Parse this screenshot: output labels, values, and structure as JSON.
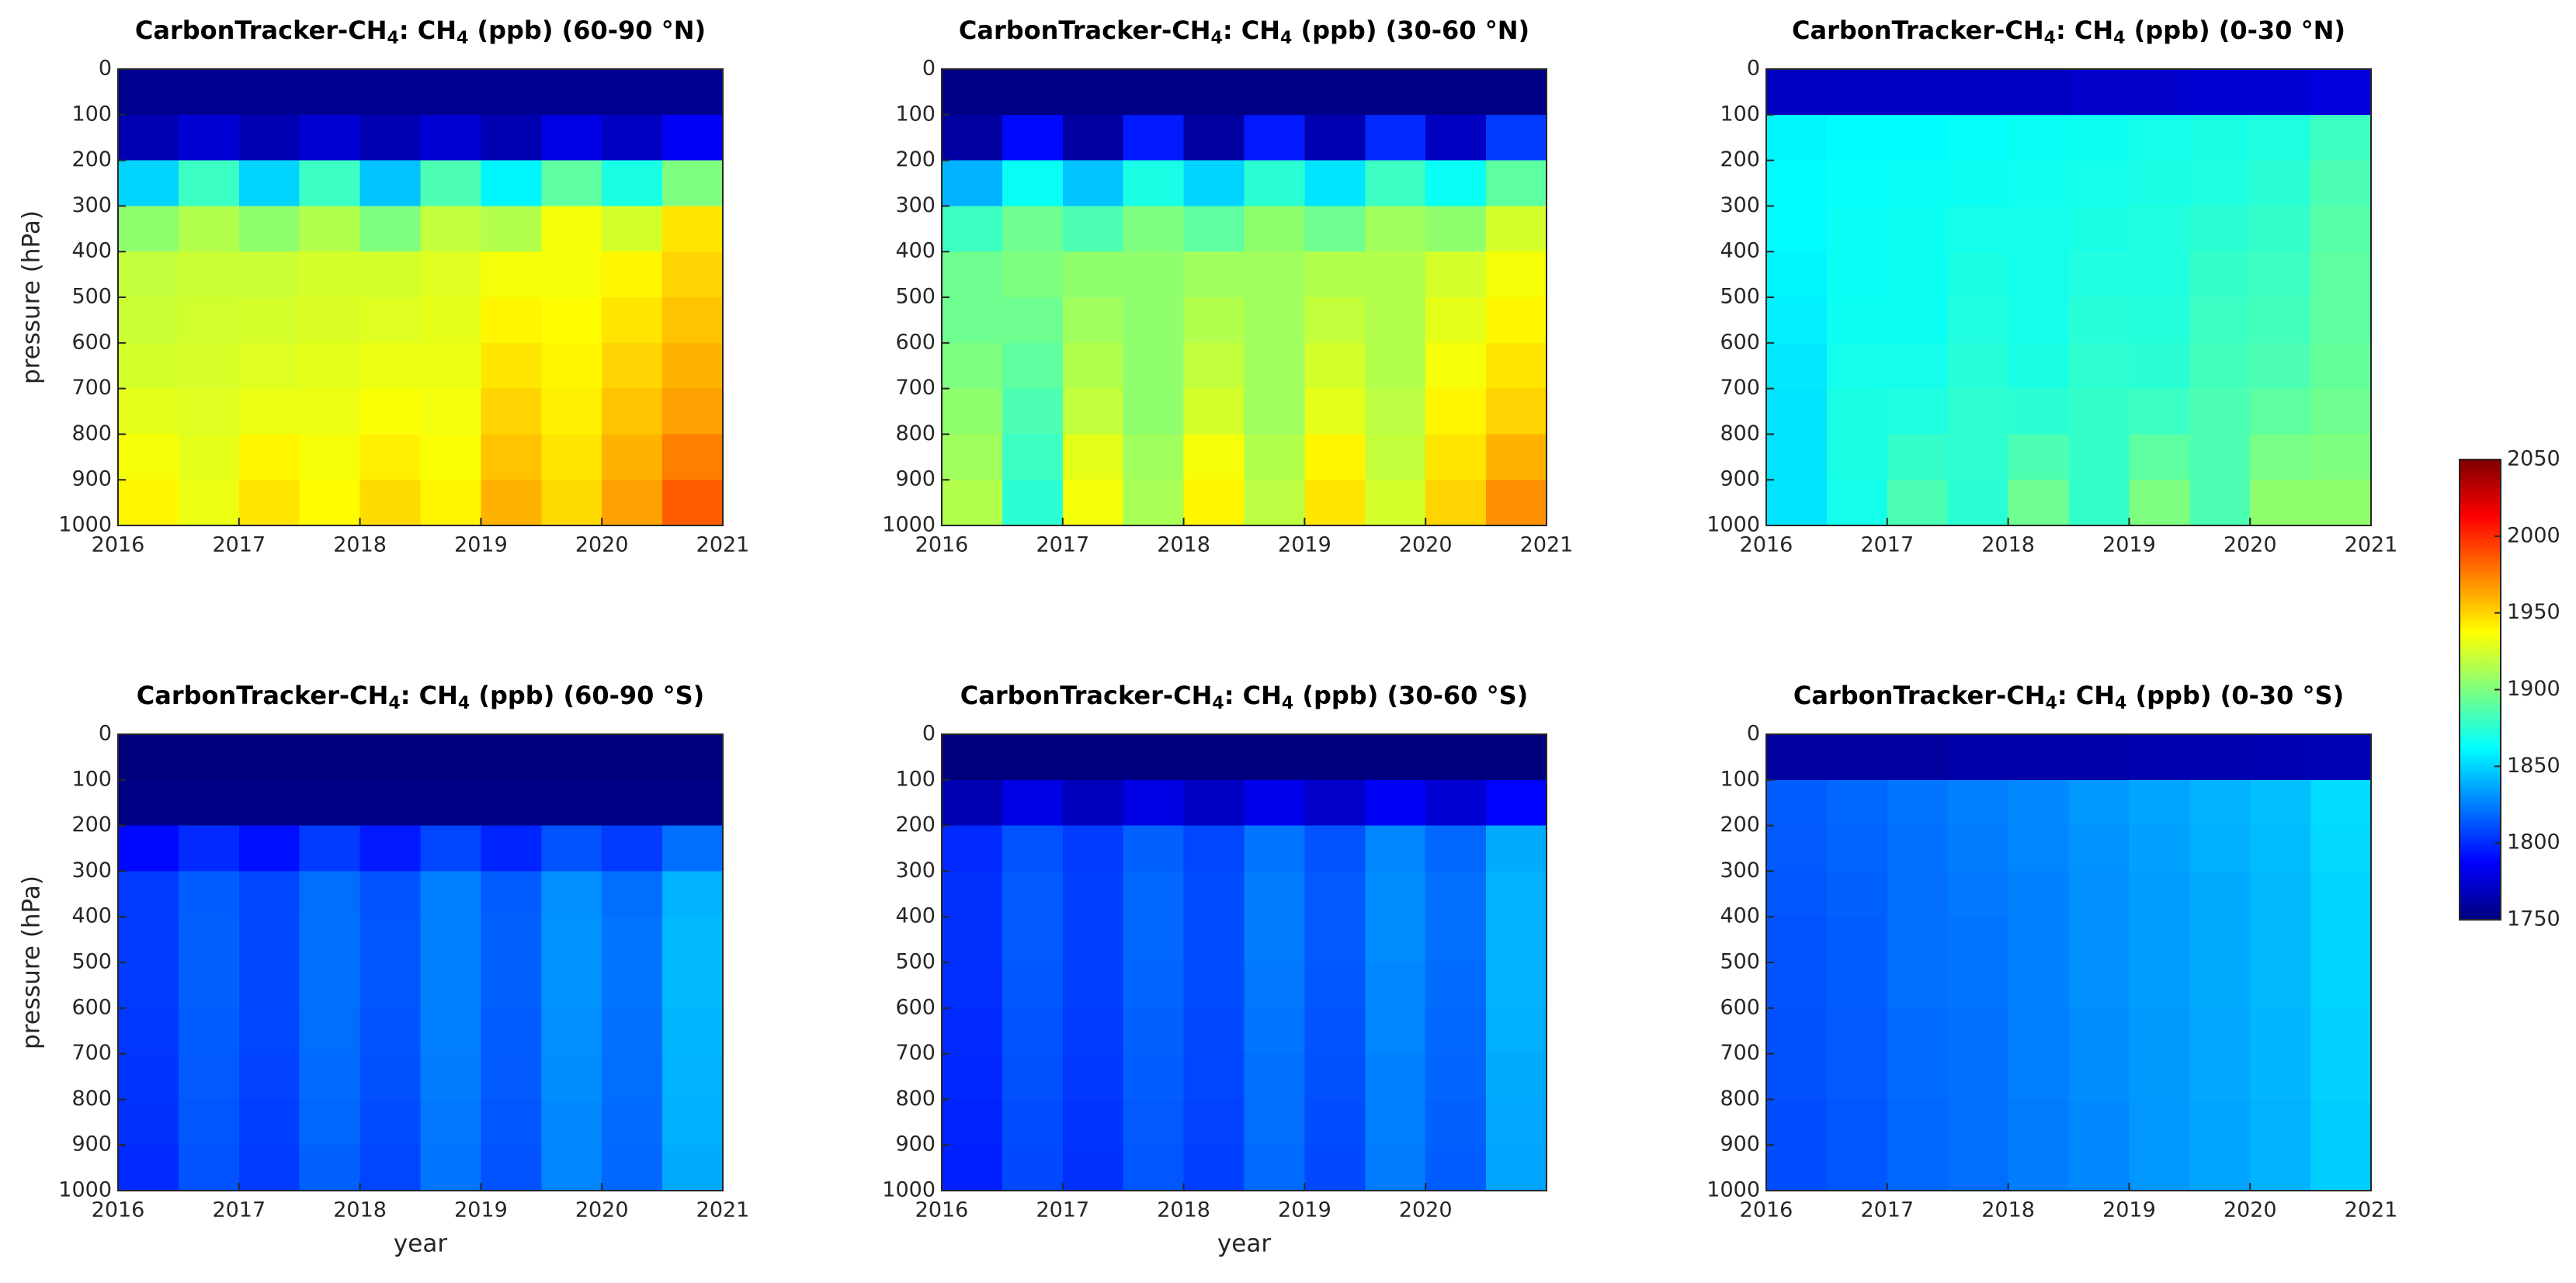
{
  "colorbar": {
    "zlim": [
      1750,
      2050
    ],
    "zticks": [
      1750,
      1800,
      1850,
      1900,
      1950,
      2000,
      2050
    ],
    "colorscale": [
      "#00007f",
      "#0000ff",
      "#007fff",
      "#00ffff",
      "#7fff7f",
      "#ffff00",
      "#ff7f00",
      "#ff0000",
      "#7f0000"
    ]
  },
  "chart_data": [
    {
      "type": "heatmap",
      "title": "CarbonTracker-CH4: CH4 (ppb) (60-90 °N)",
      "ylabel": "pressure (hPa)",
      "xlim": [
        2016,
        2021
      ],
      "xticks": [
        2016,
        2017,
        2018,
        2019,
        2020,
        2021
      ],
      "ylim": [
        0,
        1000
      ],
      "yreverse": true,
      "yticks": [
        0,
        100,
        200,
        300,
        400,
        500,
        600,
        700,
        800,
        900,
        1000
      ],
      "x": [
        2016.25,
        2016.75,
        2017.25,
        2017.75,
        2018.25,
        2018.75,
        2019.25,
        2019.75,
        2020.25,
        2020.75
      ],
      "y": [
        50,
        150,
        250,
        350,
        450,
        550,
        650,
        750,
        850,
        950
      ],
      "z": [
        [
          1755,
          1755,
          1755,
          1755,
          1755,
          1755,
          1755,
          1755,
          1755,
          1755
        ],
        [
          1765,
          1775,
          1765,
          1775,
          1765,
          1775,
          1765,
          1780,
          1770,
          1785
        ],
        [
          1850,
          1880,
          1850,
          1880,
          1845,
          1885,
          1860,
          1890,
          1870,
          1900
        ],
        [
          1905,
          1915,
          1905,
          1915,
          1900,
          1920,
          1915,
          1935,
          1925,
          1945
        ],
        [
          1920,
          1922,
          1922,
          1925,
          1925,
          1928,
          1935,
          1935,
          1940,
          1950
        ],
        [
          1922,
          1924,
          1925,
          1927,
          1928,
          1930,
          1940,
          1938,
          1945,
          1955
        ],
        [
          1925,
          1926,
          1928,
          1930,
          1932,
          1932,
          1945,
          1940,
          1950,
          1960
        ],
        [
          1930,
          1928,
          1932,
          1932,
          1936,
          1934,
          1950,
          1942,
          1955,
          1965
        ],
        [
          1935,
          1930,
          1940,
          1935,
          1942,
          1936,
          1955,
          1945,
          1960,
          1975
        ],
        [
          1940,
          1932,
          1945,
          1938,
          1948,
          1940,
          1960,
          1948,
          1965,
          1985
        ]
      ]
    },
    {
      "type": "heatmap",
      "title": "CarbonTracker-CH4: CH4 (ppb) (30-60 °N)",
      "xlim": [
        2016,
        2021
      ],
      "xticks": [
        2016,
        2017,
        2018,
        2019,
        2020,
        2021
      ],
      "ylim": [
        0,
        1000
      ],
      "yreverse": true,
      "yticks": [
        0,
        100,
        200,
        300,
        400,
        500,
        600,
        700,
        800,
        900,
        1000
      ],
      "x": [
        2016.25,
        2016.75,
        2017.25,
        2017.75,
        2018.25,
        2018.75,
        2019.25,
        2019.75,
        2020.25,
        2020.75
      ],
      "y": [
        50,
        150,
        250,
        350,
        450,
        550,
        650,
        750,
        850,
        950
      ],
      "z": [
        [
          1752,
          1752,
          1752,
          1752,
          1752,
          1752,
          1752,
          1752,
          1752,
          1752
        ],
        [
          1760,
          1790,
          1760,
          1795,
          1760,
          1795,
          1765,
          1800,
          1770,
          1805
        ],
        [
          1840,
          1865,
          1845,
          1870,
          1850,
          1875,
          1855,
          1880,
          1865,
          1890
        ],
        [
          1880,
          1895,
          1885,
          1900,
          1890,
          1905,
          1895,
          1910,
          1905,
          1925
        ],
        [
          1895,
          1900,
          1905,
          1905,
          1910,
          1910,
          1915,
          1915,
          1925,
          1935
        ],
        [
          1895,
          1895,
          1910,
          1905,
          1915,
          1910,
          1920,
          1915,
          1930,
          1940
        ],
        [
          1900,
          1890,
          1915,
          1905,
          1920,
          1910,
          1925,
          1915,
          1935,
          1945
        ],
        [
          1905,
          1885,
          1920,
          1905,
          1925,
          1910,
          1930,
          1918,
          1940,
          1950
        ],
        [
          1910,
          1880,
          1930,
          1910,
          1935,
          1915,
          1940,
          1920,
          1945,
          1960
        ],
        [
          1915,
          1875,
          1935,
          1912,
          1940,
          1918,
          1945,
          1925,
          1950,
          1970
        ]
      ]
    },
    {
      "type": "heatmap",
      "title": "CarbonTracker-CH4: CH4 (ppb) (0-30 °N)",
      "xlim": [
        2016,
        2021
      ],
      "xticks": [
        2016,
        2017,
        2018,
        2019,
        2020,
        2021
      ],
      "ylim": [
        0,
        1000
      ],
      "yreverse": true,
      "yticks": [
        0,
        100,
        200,
        300,
        400,
        500,
        600,
        700,
        800,
        900,
        1000
      ],
      "x": [
        2016.25,
        2016.75,
        2017.25,
        2017.75,
        2018.25,
        2018.75,
        2019.25,
        2019.75,
        2020.25,
        2020.75
      ],
      "y": [
        50,
        150,
        250,
        350,
        450,
        550,
        650,
        750,
        850,
        950
      ],
      "z": [
        [
          1770,
          1770,
          1770,
          1770,
          1770,
          1772,
          1772,
          1775,
          1775,
          1778
        ],
        [
          1860,
          1862,
          1862,
          1864,
          1865,
          1866,
          1868,
          1870,
          1872,
          1880
        ],
        [
          1862,
          1864,
          1865,
          1866,
          1867,
          1868,
          1870,
          1872,
          1875,
          1885
        ],
        [
          1862,
          1865,
          1866,
          1868,
          1868,
          1870,
          1872,
          1875,
          1878,
          1888
        ],
        [
          1860,
          1865,
          1866,
          1870,
          1868,
          1872,
          1872,
          1878,
          1880,
          1890
        ],
        [
          1858,
          1866,
          1866,
          1872,
          1868,
          1874,
          1873,
          1880,
          1882,
          1890
        ],
        [
          1856,
          1868,
          1868,
          1874,
          1870,
          1876,
          1875,
          1882,
          1885,
          1892
        ],
        [
          1855,
          1870,
          1872,
          1876,
          1875,
          1878,
          1880,
          1885,
          1890,
          1895
        ],
        [
          1855,
          1870,
          1878,
          1876,
          1885,
          1878,
          1890,
          1885,
          1898,
          1900
        ],
        [
          1855,
          1868,
          1885,
          1875,
          1895,
          1878,
          1900,
          1885,
          1905,
          1905
        ]
      ]
    },
    {
      "type": "heatmap",
      "title": "CarbonTracker-CH4: CH4 (ppb) (60-90 °S)",
      "ylabel": "pressure (hPa)",
      "xlabel": "year",
      "xlim": [
        2016,
        2021
      ],
      "xticks": [
        2016,
        2017,
        2018,
        2019,
        2020,
        2021
      ],
      "ylim": [
        0,
        1000
      ],
      "yreverse": true,
      "yticks": [
        0,
        100,
        200,
        300,
        400,
        500,
        600,
        700,
        800,
        900,
        1000
      ],
      "x": [
        2016.25,
        2016.75,
        2017.25,
        2017.75,
        2018.25,
        2018.75,
        2019.25,
        2019.75,
        2020.25,
        2020.75
      ],
      "y": [
        50,
        150,
        250,
        350,
        450,
        550,
        650,
        750,
        850,
        950
      ],
      "z": [
        [
          1750,
          1750,
          1750,
          1750,
          1750,
          1750,
          1750,
          1750,
          1750,
          1750
        ],
        [
          1752,
          1752,
          1752,
          1752,
          1752,
          1752,
          1752,
          1752,
          1752,
          1752
        ],
        [
          1790,
          1800,
          1792,
          1805,
          1795,
          1808,
          1798,
          1812,
          1805,
          1820
        ],
        [
          1805,
          1815,
          1808,
          1820,
          1812,
          1825,
          1815,
          1830,
          1820,
          1840
        ],
        [
          1805,
          1816,
          1809,
          1821,
          1813,
          1826,
          1816,
          1831,
          1822,
          1842
        ],
        [
          1805,
          1816,
          1809,
          1821,
          1813,
          1826,
          1816,
          1831,
          1822,
          1842
        ],
        [
          1804,
          1815,
          1808,
          1820,
          1812,
          1825,
          1815,
          1830,
          1821,
          1841
        ],
        [
          1803,
          1814,
          1807,
          1819,
          1811,
          1824,
          1814,
          1829,
          1820,
          1840
        ],
        [
          1802,
          1813,
          1806,
          1818,
          1810,
          1823,
          1813,
          1828,
          1819,
          1839
        ],
        [
          1800,
          1812,
          1805,
          1816,
          1808,
          1822,
          1812,
          1827,
          1818,
          1838
        ]
      ]
    },
    {
      "type": "heatmap",
      "title": "CarbonTracker-CH4: CH4 (ppb) (30-60 °S)",
      "xlabel": "year",
      "xlim": [
        2016,
        2021
      ],
      "xticks": [
        2016,
        2017,
        2018,
        2019,
        2020
      ],
      "ylim": [
        0,
        1000
      ],
      "yreverse": true,
      "yticks": [
        0,
        100,
        200,
        300,
        400,
        500,
        600,
        700,
        800,
        900,
        1000
      ],
      "x": [
        2016.25,
        2016.75,
        2017.25,
        2017.75,
        2018.25,
        2018.75,
        2019.25,
        2019.75,
        2020.25,
        2020.75
      ],
      "y": [
        50,
        150,
        250,
        350,
        450,
        550,
        650,
        750,
        850,
        950
      ],
      "z": [
        [
          1750,
          1750,
          1750,
          1750,
          1750,
          1750,
          1750,
          1750,
          1750,
          1750
        ],
        [
          1765,
          1780,
          1768,
          1780,
          1770,
          1782,
          1772,
          1785,
          1775,
          1788
        ],
        [
          1800,
          1812,
          1805,
          1816,
          1808,
          1822,
          1812,
          1827,
          1818,
          1838
        ],
        [
          1802,
          1814,
          1806,
          1818,
          1810,
          1824,
          1814,
          1829,
          1820,
          1840
        ],
        [
          1802,
          1814,
          1806,
          1818,
          1810,
          1824,
          1814,
          1829,
          1820,
          1840
        ],
        [
          1801,
          1813,
          1806,
          1817,
          1810,
          1823,
          1813,
          1828,
          1819,
          1840
        ],
        [
          1800,
          1812,
          1805,
          1816,
          1809,
          1822,
          1812,
          1827,
          1818,
          1839
        ],
        [
          1799,
          1811,
          1804,
          1815,
          1808,
          1821,
          1811,
          1826,
          1817,
          1838
        ],
        [
          1798,
          1810,
          1803,
          1814,
          1807,
          1820,
          1810,
          1825,
          1816,
          1837
        ],
        [
          1797,
          1809,
          1802,
          1813,
          1806,
          1819,
          1809,
          1824,
          1815,
          1836
        ]
      ]
    },
    {
      "type": "heatmap",
      "title": "CarbonTracker-CH4: CH4 (ppb) (0-30 °S)",
      "xlim": [
        2016,
        2021
      ],
      "xticks": [
        2016,
        2017,
        2018,
        2019,
        2020,
        2021
      ],
      "ylim": [
        0,
        1000
      ],
      "yreverse": true,
      "yticks": [
        0,
        100,
        200,
        300,
        400,
        500,
        600,
        700,
        800,
        900,
        1000
      ],
      "x": [
        2016.25,
        2016.75,
        2017.25,
        2017.75,
        2018.25,
        2018.75,
        2019.25,
        2019.75,
        2020.25,
        2020.75
      ],
      "y": [
        50,
        150,
        250,
        350,
        450,
        550,
        650,
        750,
        850,
        950
      ],
      "z": [
        [
          1760,
          1760,
          1760,
          1762,
          1762,
          1762,
          1764,
          1764,
          1765,
          1766
        ],
        [
          1815,
          1818,
          1822,
          1825,
          1828,
          1832,
          1836,
          1840,
          1844,
          1852
        ],
        [
          1814,
          1817,
          1821,
          1824,
          1827,
          1831,
          1835,
          1839,
          1843,
          1851
        ],
        [
          1813,
          1816,
          1820,
          1823,
          1826,
          1830,
          1834,
          1838,
          1842,
          1850
        ],
        [
          1812,
          1815,
          1820,
          1822,
          1826,
          1830,
          1834,
          1838,
          1842,
          1850
        ],
        [
          1812,
          1815,
          1820,
          1822,
          1826,
          1830,
          1834,
          1838,
          1842,
          1850
        ],
        [
          1811,
          1814,
          1819,
          1821,
          1825,
          1829,
          1833,
          1837,
          1841,
          1849
        ],
        [
          1811,
          1814,
          1819,
          1821,
          1825,
          1829,
          1833,
          1837,
          1841,
          1849
        ],
        [
          1810,
          1813,
          1818,
          1820,
          1824,
          1828,
          1832,
          1836,
          1840,
          1848
        ],
        [
          1810,
          1813,
          1818,
          1820,
          1824,
          1828,
          1832,
          1836,
          1840,
          1848
        ]
      ]
    }
  ]
}
